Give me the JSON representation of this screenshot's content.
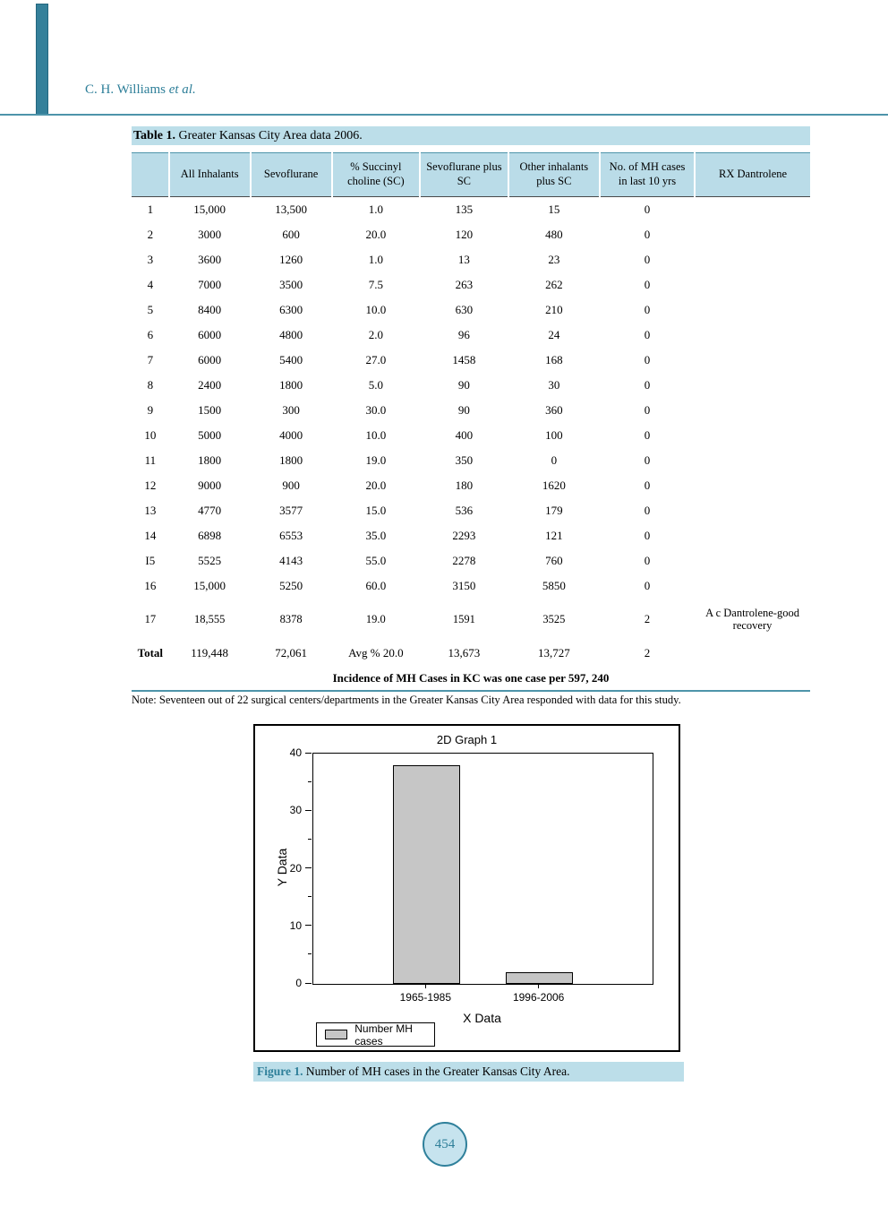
{
  "page": {
    "header_author": "C. H. Williams",
    "header_etal": "et al.",
    "page_number": "454"
  },
  "colors": {
    "accent_teal": "#2E7F99",
    "rule_teal": "#4E94AA",
    "highlight_blue": "#BCDEE9",
    "table_header_bg": "#BADCE8",
    "bar_gray": "#C6C6C6"
  },
  "table": {
    "caption_label": "Table 1.",
    "caption_text": " Greater Kansas City Area data 2006.",
    "columns": [
      "",
      "All Inhalants",
      "Sevoflurane",
      "% Succinyl choline (SC)",
      "Sevoflurane plus SC",
      "Other inhalants plus SC",
      "No. of MH cases in last 10 yrs",
      "RX Dantrolene"
    ],
    "rows": [
      [
        "1",
        "15,000",
        "13,500",
        "1.0",
        "135",
        "15",
        "0",
        ""
      ],
      [
        "2",
        "3000",
        "600",
        "20.0",
        "120",
        "480",
        "0",
        ""
      ],
      [
        "3",
        "3600",
        "1260",
        "1.0",
        "13",
        "23",
        "0",
        ""
      ],
      [
        "4",
        "7000",
        "3500",
        "7.5",
        "263",
        "262",
        "0",
        ""
      ],
      [
        "5",
        "8400",
        "6300",
        "10.0",
        "630",
        "210",
        "0",
        ""
      ],
      [
        "6",
        "6000",
        "4800",
        "2.0",
        "96",
        "24",
        "0",
        ""
      ],
      [
        "7",
        "6000",
        "5400",
        "27.0",
        "1458",
        "168",
        "0",
        ""
      ],
      [
        "8",
        "2400",
        "1800",
        "5.0",
        "90",
        "30",
        "0",
        ""
      ],
      [
        "9",
        "1500",
        "300",
        "30.0",
        "90",
        "360",
        "0",
        ""
      ],
      [
        "10",
        "5000",
        "4000",
        "10.0",
        "400",
        "100",
        "0",
        ""
      ],
      [
        "11",
        "1800",
        "1800",
        "19.0",
        "350",
        "0",
        "0",
        ""
      ],
      [
        "12",
        "9000",
        "900",
        "20.0",
        "180",
        "1620",
        "0",
        ""
      ],
      [
        "13",
        "4770",
        "3577",
        "15.0",
        "536",
        "179",
        "0",
        ""
      ],
      [
        "14",
        "6898",
        "6553",
        "35.0",
        "2293",
        "121",
        "0",
        ""
      ],
      [
        "I5",
        "5525",
        "4143",
        "55.0",
        "2278",
        "760",
        "0",
        ""
      ],
      [
        "16",
        "15,000",
        "5250",
        "60.0",
        "3150",
        "5850",
        "0",
        ""
      ],
      [
        "17",
        "18,555",
        "8378",
        "19.0",
        "1591",
        "3525",
        "2",
        "A c Dantrolene-good recovery"
      ]
    ],
    "total_row": [
      "Total",
      "119,448",
      "72,061",
      "Avg % 20.0",
      "13,673",
      "13,727",
      "2",
      ""
    ],
    "footer_line": "Incidence of MH Cases in KC was one case per 597, 240",
    "note": "Note: Seventeen out of 22 surgical centers/departments in the Greater Kansas City Area responded with data for this study."
  },
  "figure": {
    "caption_label": "Figure 1.",
    "caption_text": " Number of MH cases in the Greater Kansas City Area."
  },
  "chart_data": {
    "type": "bar",
    "title": "2D Graph 1",
    "categories": [
      "1965-1985",
      "1996-2006"
    ],
    "values": [
      38,
      2
    ],
    "xlabel": "X Data",
    "ylabel": "Y Data",
    "ylim": [
      0,
      40
    ],
    "yticks": [
      0,
      10,
      20,
      30,
      40
    ],
    "minor_yticks": [
      5,
      15,
      25,
      35
    ],
    "legend": [
      "Number MH cases"
    ],
    "legend_position": "bottom-left",
    "bar_color": "#C6C6C6",
    "grid": false
  }
}
